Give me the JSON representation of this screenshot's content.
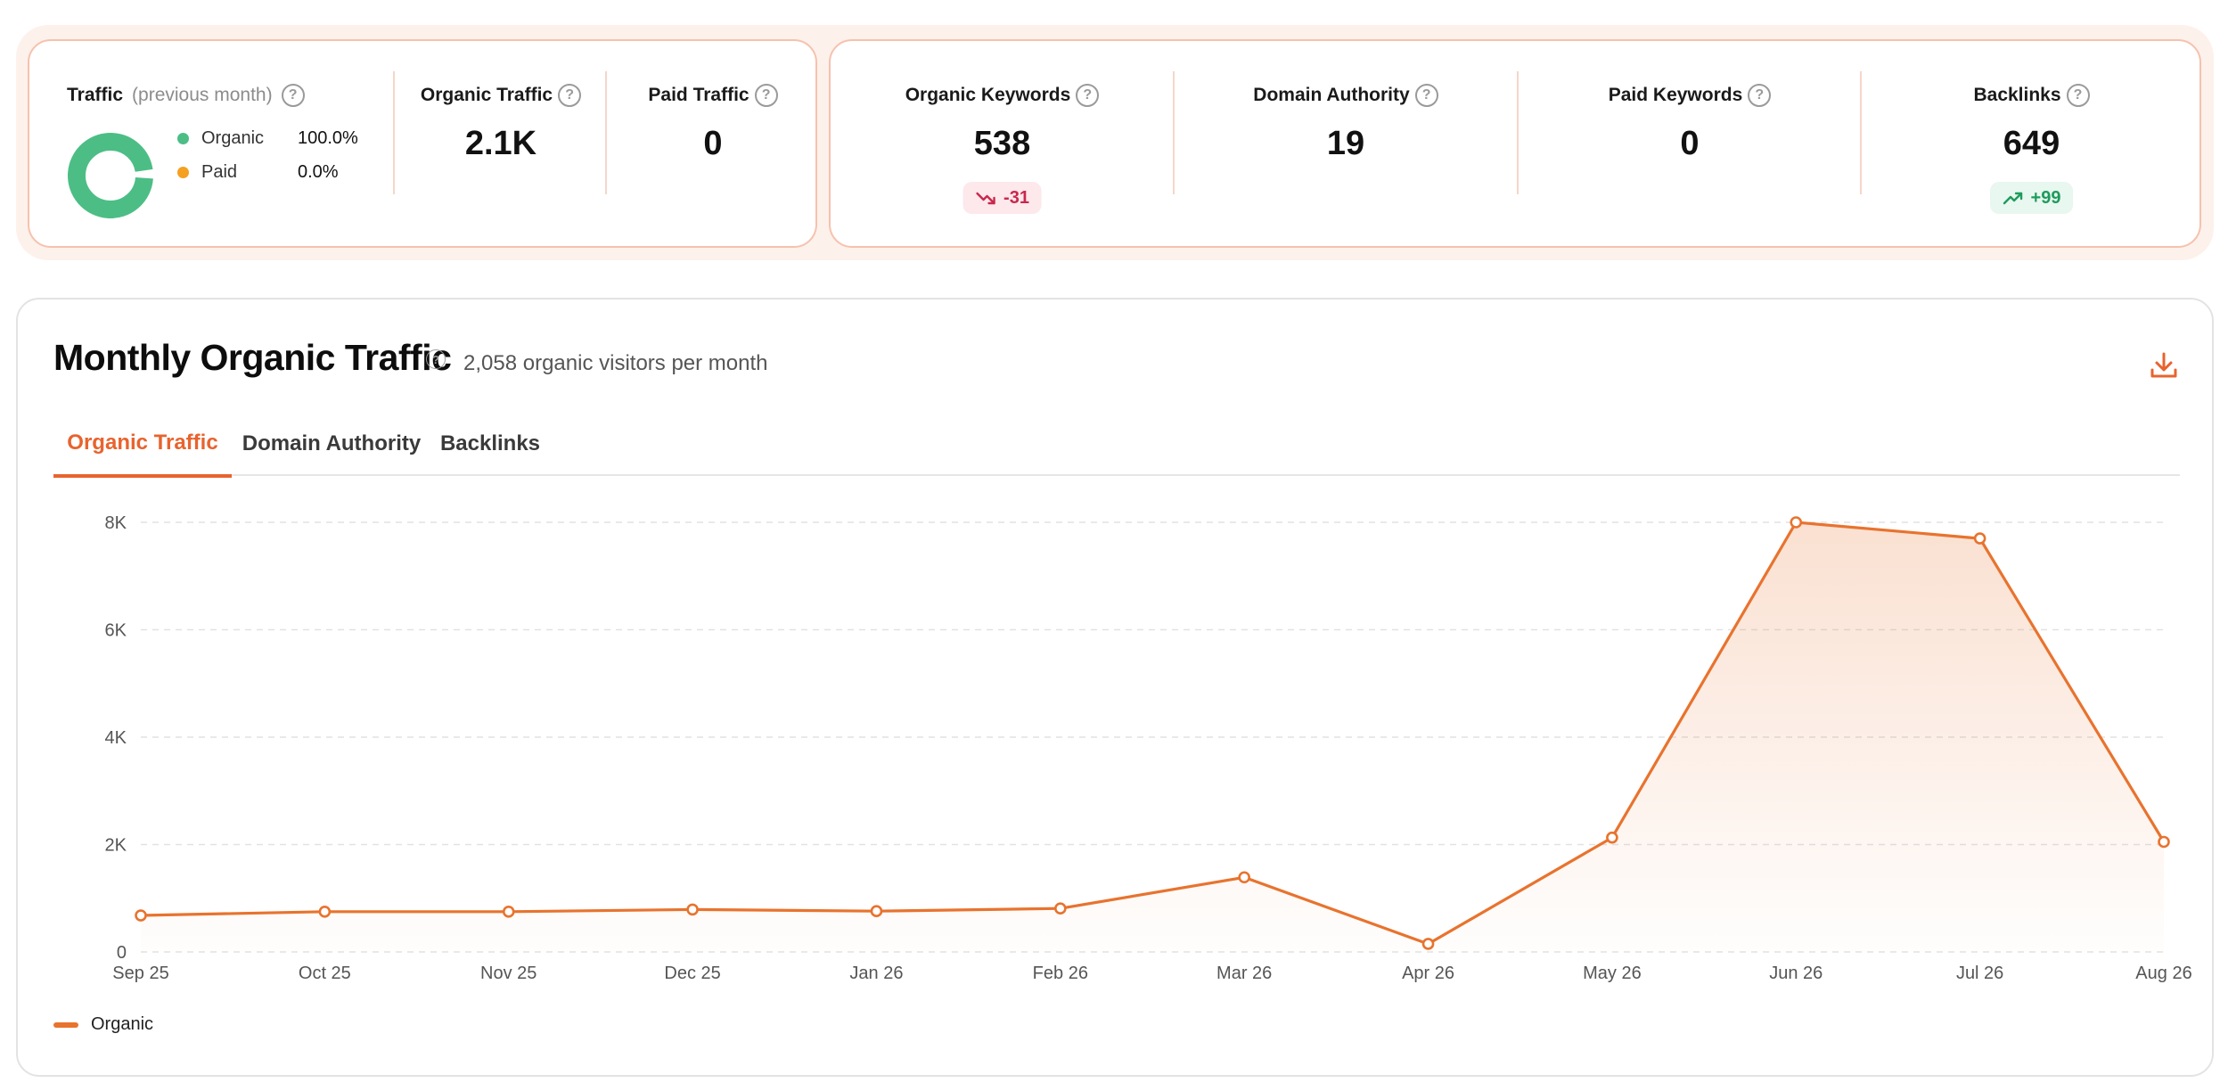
{
  "colors": {
    "accent": "#e8632e",
    "line": "#e8732e",
    "organic": "#4cbe85",
    "paid": "#f4a020",
    "down": "#c8284d",
    "up": "#1e9b5d"
  },
  "traffic": {
    "title": "Traffic",
    "period": "(previous month)",
    "legend": [
      {
        "name": "Organic",
        "pct": "100.0%",
        "value": 100.0
      },
      {
        "name": "Paid",
        "pct": "0.0%",
        "value": 0.0
      }
    ]
  },
  "metrics_a": [
    {
      "label": "Organic Traffic",
      "value": "2.1K"
    },
    {
      "label": "Paid Traffic",
      "value": "0"
    }
  ],
  "metrics_b": [
    {
      "label": "Organic Keywords",
      "value": "538",
      "delta": "-31",
      "trend": "down",
      "trend_icon": "trend-down-icon"
    },
    {
      "label": "Domain Authority",
      "value": "19"
    },
    {
      "label": "Paid Keywords",
      "value": "0"
    },
    {
      "label": "Backlinks",
      "value": "649",
      "delta": "+99",
      "trend": "up",
      "trend_icon": "trend-up-icon"
    }
  ],
  "panel": {
    "title": "Monthly Organic Traffic",
    "subtitle": "2,058 organic visitors per month",
    "download_icon": "download-icon"
  },
  "tabs": [
    {
      "label": "Organic Traffic",
      "active": true
    },
    {
      "label": "Domain Authority",
      "active": false
    },
    {
      "label": "Backlinks",
      "active": false
    }
  ],
  "chart_data": {
    "type": "area",
    "x": [
      "Sep 25",
      "Oct 25",
      "Nov 25",
      "Dec 25",
      "Jan 26",
      "Feb 26",
      "Mar 26",
      "Apr 26",
      "May 26",
      "Jun 26",
      "Jul 26",
      "Aug 26"
    ],
    "series": [
      {
        "name": "Organic",
        "values": [
          680,
          750,
          750,
          790,
          760,
          810,
          1390,
          150,
          2130,
          8000,
          7700,
          2050
        ]
      }
    ],
    "yticks": [
      "0",
      "2K",
      "4K",
      "6K",
      "8K"
    ],
    "ytick_values": [
      0,
      2000,
      4000,
      6000,
      8000
    ],
    "ylim": [
      0,
      8000
    ],
    "grid": true,
    "legend_position": "bottom-left"
  }
}
